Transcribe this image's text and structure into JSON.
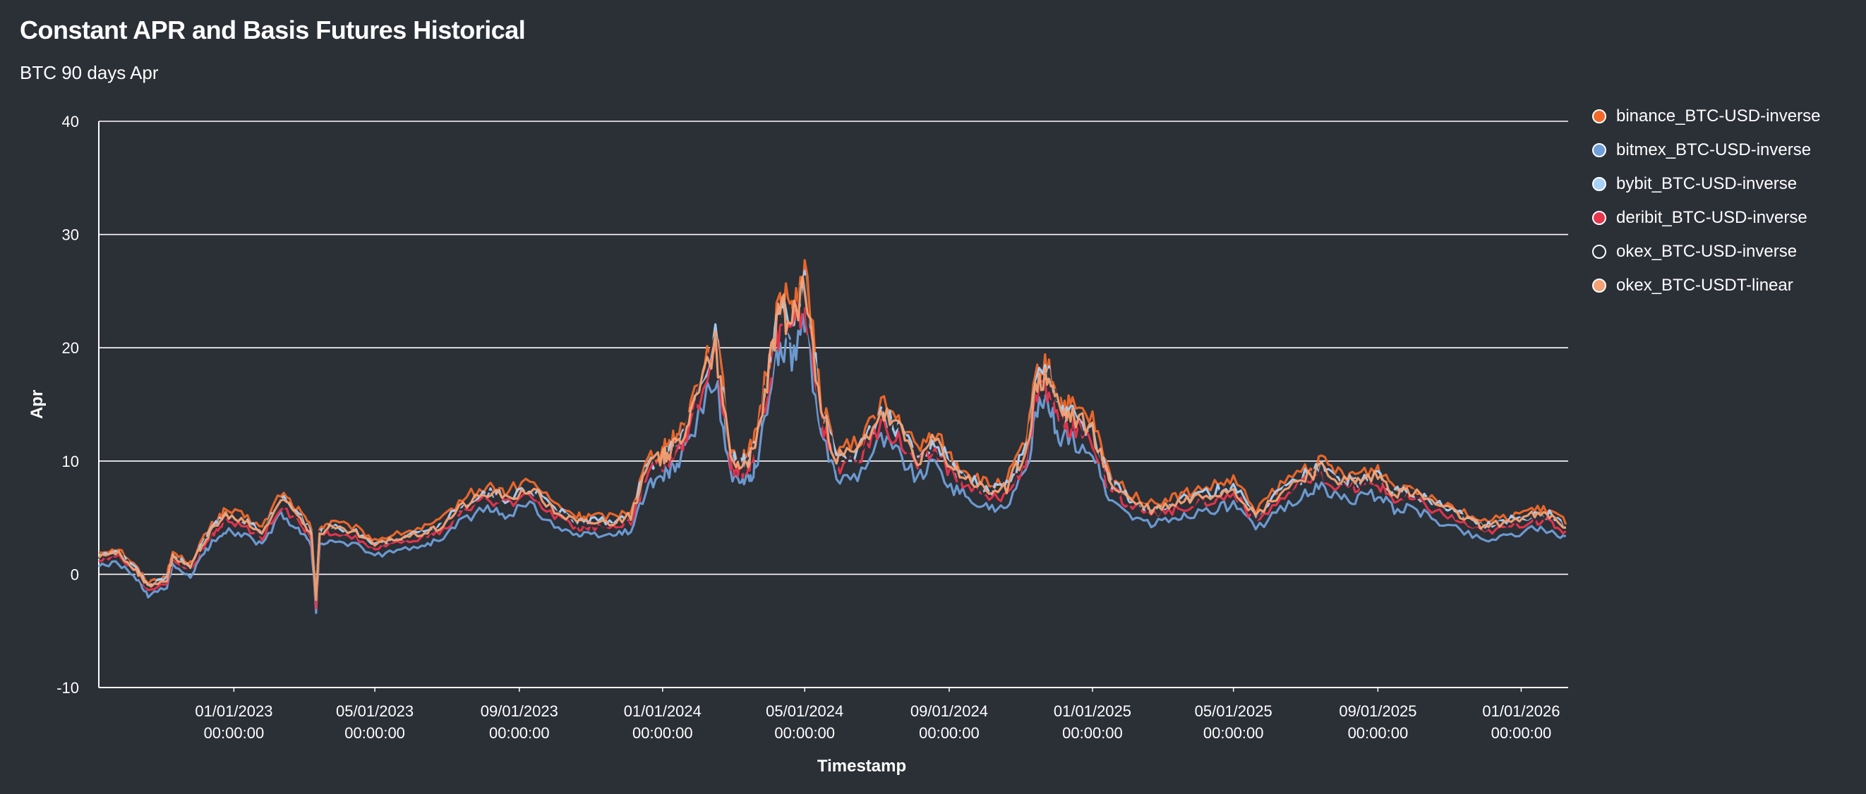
{
  "title": "Constant APR and Basis Futures Historical",
  "subtitle": "BTC 90 days Apr",
  "chart_data": {
    "type": "line",
    "xlabel": "Timestamp",
    "ylabel": "Apr",
    "ylim": [
      -10,
      40
    ],
    "yticks": [
      -10,
      0,
      10,
      20,
      30,
      40
    ],
    "xlim": [
      "2022-09-08",
      "2026-02-10"
    ],
    "xticks": [
      {
        "date": "2023-01-01",
        "line1": "01/01/2023",
        "line2": "00:00:00"
      },
      {
        "date": "2023-05-01",
        "line1": "05/01/2023",
        "line2": "00:00:00"
      },
      {
        "date": "2023-09-01",
        "line1": "09/01/2023",
        "line2": "00:00:00"
      },
      {
        "date": "2024-01-01",
        "line1": "01/01/2024",
        "line2": "00:00:00"
      },
      {
        "date": "2024-05-01",
        "line1": "05/01/2024",
        "line2": "00:00:00"
      },
      {
        "date": "2024-09-01",
        "line1": "09/01/2024",
        "line2": "00:00:00"
      },
      {
        "date": "2025-01-01",
        "line1": "01/01/2025",
        "line2": "00:00:00"
      },
      {
        "date": "2025-05-01",
        "line1": "05/01/2025",
        "line2": "00:00:00"
      },
      {
        "date": "2025-09-01",
        "line1": "09/01/2025",
        "line2": "00:00:00"
      },
      {
        "date": "2026-01-01",
        "line1": "01/01/2026",
        "line2": "00:00:00"
      }
    ],
    "grid": "horizontal",
    "legend_position": "top-right",
    "series": [
      {
        "name": "binance_BTC-USD-inverse",
        "color": "#f2692a",
        "offset": 0.8
      },
      {
        "name": "bitmex_BTC-USD-inverse",
        "color": "#6f9fd8",
        "offset": -1.3
      },
      {
        "name": "bybit_BTC-USD-inverse",
        "color": "#a9d1f7",
        "offset": 0.3
      },
      {
        "name": "deribit_BTC-USD-inverse",
        "color": "#e8354e",
        "offset": -0.4
      },
      {
        "name": "okex_BTC-USD-inverse",
        "color": "#2b2f36",
        "offset": 0.0
      },
      {
        "name": "okex_BTC-USDT-linear",
        "color": "#f4a174",
        "offset": 0.2
      }
    ],
    "base_x": [
      "2022-09-08",
      "2022-09-25",
      "2022-10-10",
      "2022-10-20",
      "2022-11-05",
      "2022-11-10",
      "2022-11-25",
      "2022-12-05",
      "2022-12-15",
      "2022-12-25",
      "2023-01-10",
      "2023-01-25",
      "2023-02-10",
      "2023-02-25",
      "2023-03-08",
      "2023-03-12",
      "2023-03-15",
      "2023-03-25",
      "2023-04-15",
      "2023-05-01",
      "2023-05-20",
      "2023-06-10",
      "2023-06-25",
      "2023-07-15",
      "2023-08-05",
      "2023-08-20",
      "2023-09-10",
      "2023-10-01",
      "2023-10-20",
      "2023-11-01",
      "2023-11-20",
      "2023-12-05",
      "2023-12-20",
      "2024-01-01",
      "2024-01-05",
      "2024-01-15",
      "2024-01-25",
      "2024-02-15",
      "2024-02-28",
      "2024-03-08",
      "2024-03-15",
      "2024-03-20",
      "2024-04-01",
      "2024-04-10",
      "2024-04-20",
      "2024-05-01",
      "2024-05-15",
      "2024-05-28",
      "2024-06-15",
      "2024-07-05",
      "2024-07-20",
      "2024-08-05",
      "2024-08-20",
      "2024-09-05",
      "2024-09-20",
      "2024-10-05",
      "2024-10-20",
      "2024-11-05",
      "2024-11-15",
      "2024-11-25",
      "2024-12-05",
      "2024-12-15",
      "2025-01-01",
      "2025-01-15",
      "2025-02-01",
      "2025-02-20",
      "2025-03-10",
      "2025-03-25",
      "2025-04-15",
      "2025-05-01",
      "2025-05-20",
      "2025-06-10",
      "2025-07-01",
      "2025-07-15",
      "2025-08-01",
      "2025-08-15",
      "2025-09-01",
      "2025-09-15",
      "2025-10-01",
      "2025-10-20",
      "2025-11-10",
      "2025-12-01",
      "2025-12-20",
      "2026-01-10",
      "2026-01-25",
      "2026-02-08"
    ],
    "base_y": [
      1.5,
      1.8,
      0.2,
      -1.2,
      -0.5,
      1.5,
      0.5,
      2.5,
      4.0,
      5.0,
      4.5,
      3.5,
      6.5,
      5.0,
      3.5,
      -2.5,
      3.5,
      4.0,
      3.5,
      2.5,
      3.0,
      3.5,
      4.0,
      6.0,
      7.0,
      6.5,
      7.5,
      5.5,
      4.5,
      4.5,
      4.5,
      5.0,
      9.5,
      10.0,
      10.5,
      11.5,
      14.0,
      20.0,
      10.0,
      9.5,
      10.0,
      11.0,
      18.0,
      23.0,
      22.0,
      25.0,
      14.0,
      10.0,
      10.5,
      14.0,
      12.5,
      10.0,
      11.5,
      9.0,
      8.0,
      7.0,
      7.5,
      10.5,
      16.5,
      17.0,
      14.0,
      13.5,
      12.5,
      8.0,
      6.5,
      5.5,
      6.0,
      6.5,
      7.0,
      7.5,
      5.0,
      7.0,
      8.5,
      9.0,
      8.0,
      8.0,
      8.5,
      7.0,
      7.0,
      6.0,
      5.0,
      4.0,
      4.5,
      5.0,
      5.0,
      4.0
    ]
  }
}
